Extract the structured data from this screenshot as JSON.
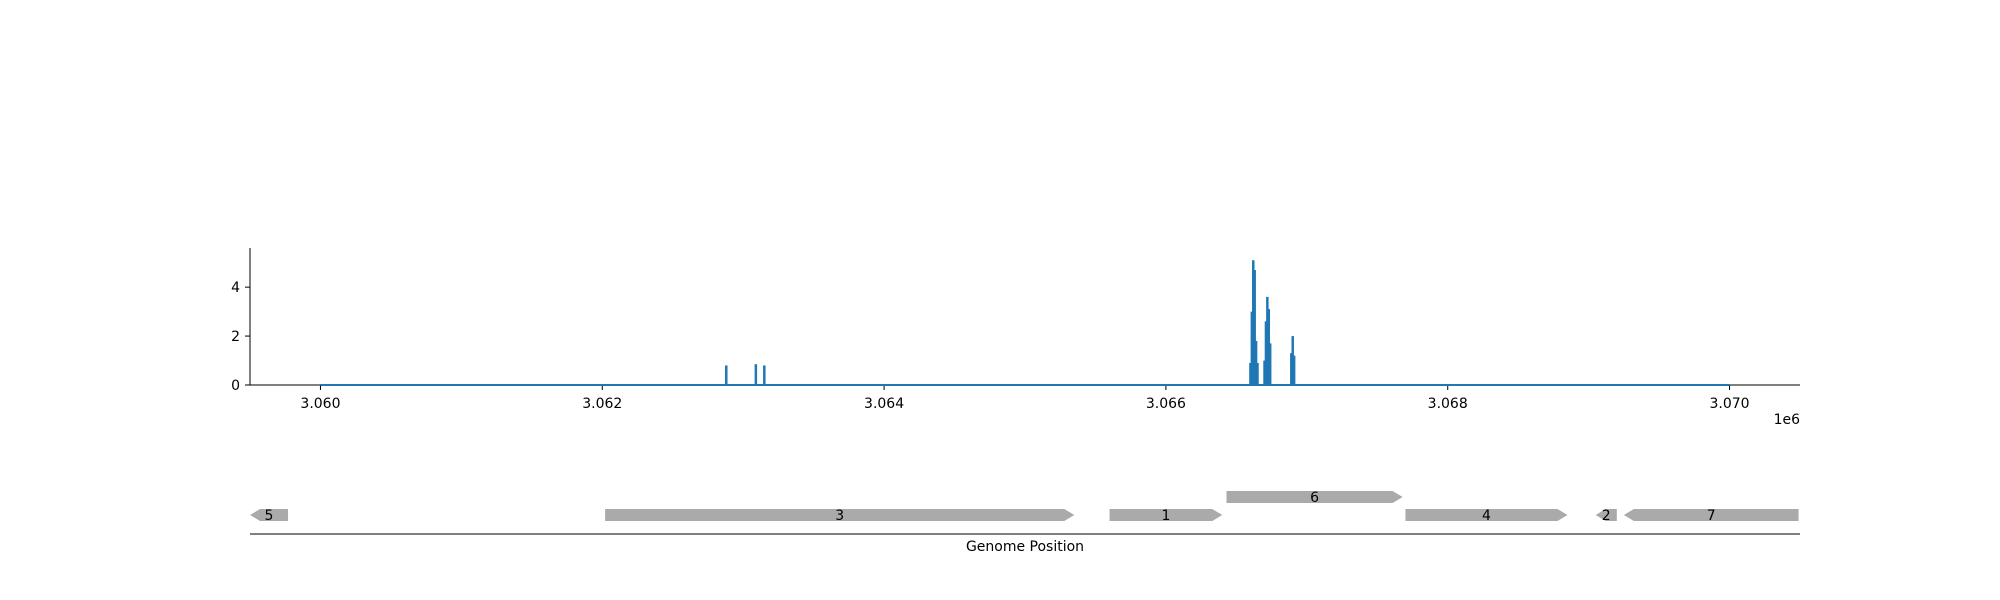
{
  "chart_data": {
    "type": "line",
    "title": "",
    "xlabel": "Genome Position",
    "ylabel": "",
    "x_offset_label": "1e6",
    "xlim": [
      3059500,
      3070500
    ],
    "ylim": [
      0,
      5.6
    ],
    "x_ticks": [
      3060000,
      3062000,
      3064000,
      3066000,
      3068000,
      3070000
    ],
    "x_tick_labels": [
      "3.060",
      "3.062",
      "3.064",
      "3.066",
      "3.068",
      "3.070"
    ],
    "y_ticks": [
      0,
      2,
      4
    ],
    "y_tick_labels": [
      "0",
      "2",
      "4"
    ],
    "grid": false,
    "line_color": "#1f77b4",
    "baseline": {
      "x_start": 3060000,
      "x_end": 3070000,
      "y": 0
    },
    "peaks": [
      {
        "x": 3062880,
        "y": 0.8
      },
      {
        "x": 3063090,
        "y": 0.85
      },
      {
        "x": 3063150,
        "y": 0.8
      },
      {
        "x": 3066600,
        "y": 0.9
      },
      {
        "x": 3066610,
        "y": 3.0
      },
      {
        "x": 3066620,
        "y": 5.1
      },
      {
        "x": 3066630,
        "y": 4.7
      },
      {
        "x": 3066640,
        "y": 1.8
      },
      {
        "x": 3066650,
        "y": 0.9
      },
      {
        "x": 3066700,
        "y": 1.0
      },
      {
        "x": 3066710,
        "y": 2.6
      },
      {
        "x": 3066720,
        "y": 3.6
      },
      {
        "x": 3066730,
        "y": 3.1
      },
      {
        "x": 3066740,
        "y": 1.7
      },
      {
        "x": 3066890,
        "y": 1.3
      },
      {
        "x": 3066900,
        "y": 2.0
      },
      {
        "x": 3066910,
        "y": 1.2
      }
    ],
    "gene_track": {
      "color": "#aaaaaa",
      "genes": [
        {
          "label": "5",
          "start": 3059500,
          "end": 3059770,
          "strand": "-",
          "row": 0
        },
        {
          "label": "3",
          "start": 3062020,
          "end": 3065350,
          "strand": "+",
          "row": 0
        },
        {
          "label": "1",
          "start": 3065600,
          "end": 3066400,
          "strand": "+",
          "row": 0
        },
        {
          "label": "6",
          "start": 3066430,
          "end": 3067680,
          "strand": "+",
          "row": 1
        },
        {
          "label": "4",
          "start": 3067700,
          "end": 3068850,
          "strand": "+",
          "row": 0
        },
        {
          "label": "2",
          "start": 3069050,
          "end": 3069200,
          "strand": "-",
          "row": 0
        },
        {
          "label": "7",
          "start": 3069250,
          "end": 3070490,
          "strand": "-",
          "row": 0
        }
      ]
    }
  }
}
